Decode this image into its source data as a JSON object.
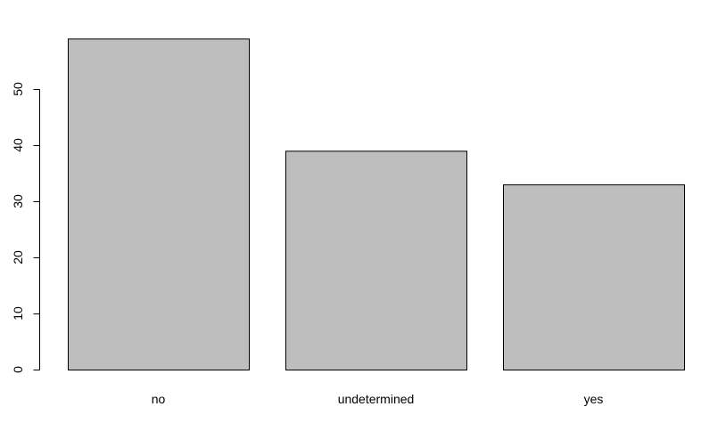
{
  "chart_data": {
    "type": "bar",
    "title": "",
    "xlabel": "",
    "ylabel": "",
    "categories": [
      "no",
      "undetermined",
      "yes"
    ],
    "values": [
      59,
      39,
      33
    ],
    "ylim": [
      0,
      60
    ],
    "yticks": [
      0,
      10,
      20,
      30,
      40,
      50
    ],
    "ytick_labels": [
      "0",
      "10",
      "20",
      "30",
      "40",
      "50"
    ],
    "grid": false,
    "legend": "none",
    "colors": {
      "bar_fill": "#bebebe",
      "bar_stroke": "#000000",
      "background": "#ffffff"
    }
  }
}
